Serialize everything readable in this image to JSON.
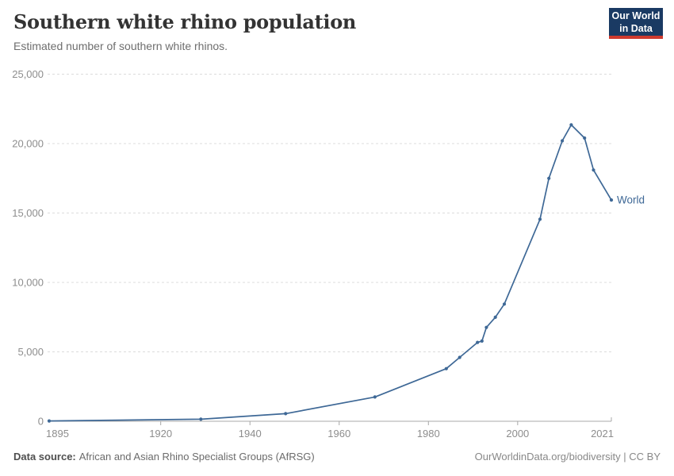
{
  "header": {
    "title": "Southern white rhino population",
    "subtitle": "Estimated number of southern white rhinos."
  },
  "logo": {
    "line1": "Our World",
    "line2": "in Data",
    "background": "#1a3a63",
    "accent": "#cf3a2e"
  },
  "chart_data": {
    "type": "line",
    "title": "Southern white rhino population",
    "xlabel": "",
    "ylabel": "",
    "xlim": [
      1895,
      2021
    ],
    "ylim": [
      0,
      25000
    ],
    "grid": "horizontal-dashed",
    "legend_position": "end-of-line",
    "x_ticks": [
      1895,
      1920,
      1940,
      1960,
      1980,
      2000,
      2021
    ],
    "x_tick_labels": [
      "1895",
      "1920",
      "1940",
      "1960",
      "1980",
      "2000",
      "2021"
    ],
    "y_ticks": [
      0,
      5000,
      10000,
      15000,
      20000,
      25000
    ],
    "y_tick_labels": [
      "0",
      "5,000",
      "10,000",
      "15,000",
      "20,000",
      "25,000"
    ],
    "series": [
      {
        "name": "World",
        "color": "#3e6896",
        "points": [
          [
            1895,
            20
          ],
          [
            1929,
            150
          ],
          [
            1948,
            550
          ],
          [
            1968,
            1750
          ],
          [
            1984,
            3790
          ],
          [
            1987,
            4600
          ],
          [
            1991,
            5680
          ],
          [
            1992,
            5780
          ],
          [
            1993,
            6760
          ],
          [
            1995,
            7490
          ],
          [
            1997,
            8440
          ],
          [
            2005,
            14550
          ],
          [
            2007,
            17500
          ],
          [
            2010,
            20200
          ],
          [
            2012,
            21350
          ],
          [
            2015,
            20400
          ],
          [
            2017,
            18100
          ],
          [
            2021,
            15940
          ]
        ]
      }
    ]
  },
  "colors": {
    "line": "#3e6896",
    "grid": "#dcdcdc",
    "axis": "#a8a8a8",
    "tick_text": "#8d8d8d"
  },
  "footer": {
    "datasource_label": "Data source:",
    "datasource_value": "African and Asian Rhino Specialist Groups (AfRSG)",
    "credit": "OurWorldinData.org/biodiversity | CC BY"
  }
}
